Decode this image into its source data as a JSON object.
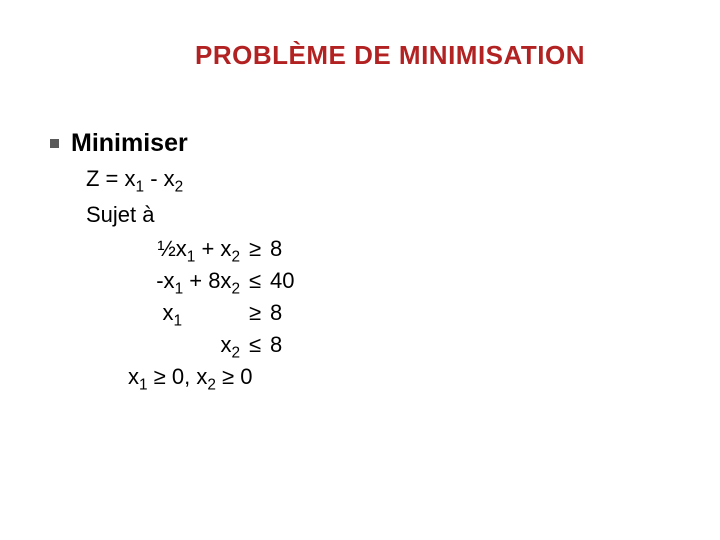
{
  "title": {
    "text": "PROBLÈME DE MINIMISATION",
    "color": "#b22222",
    "fontsize": 26,
    "weight": "bold"
  },
  "bullet": {
    "label": "Minimiser",
    "color": "#5a5a5a",
    "size": 9,
    "label_fontsize": 25,
    "label_weight": "bold"
  },
  "objective": {
    "prefix": "Z = x",
    "sub1": "1",
    "mid": " - x",
    "sub2": "2"
  },
  "subject_to": "Sujet à",
  "constraints": [
    {
      "lhs_a": "½x",
      "s1": "1",
      "lhs_b": " +  x",
      "s2": "2",
      "op": "≥",
      "rhs": "8"
    },
    {
      "lhs_a": "-x",
      "s1": "1",
      "lhs_b": " + 8x",
      "s2": "2",
      "op": "≤",
      "rhs": "40"
    },
    {
      "lhs_a": "x",
      "s1": "1",
      "lhs_b": "",
      "s2": "",
      "op": "≥",
      "rhs": "8"
    },
    {
      "lhs_a": "",
      "s1": "",
      "lhs_b": "x",
      "s2": "2",
      "op": "≤",
      "rhs": "8"
    }
  ],
  "nonneg": {
    "a": "x",
    "s1": "1",
    "b": " ≥ 0,   x",
    "s2": "2",
    "c": " ≥ 0"
  },
  "text_color": "#000000",
  "background": "#ffffff"
}
